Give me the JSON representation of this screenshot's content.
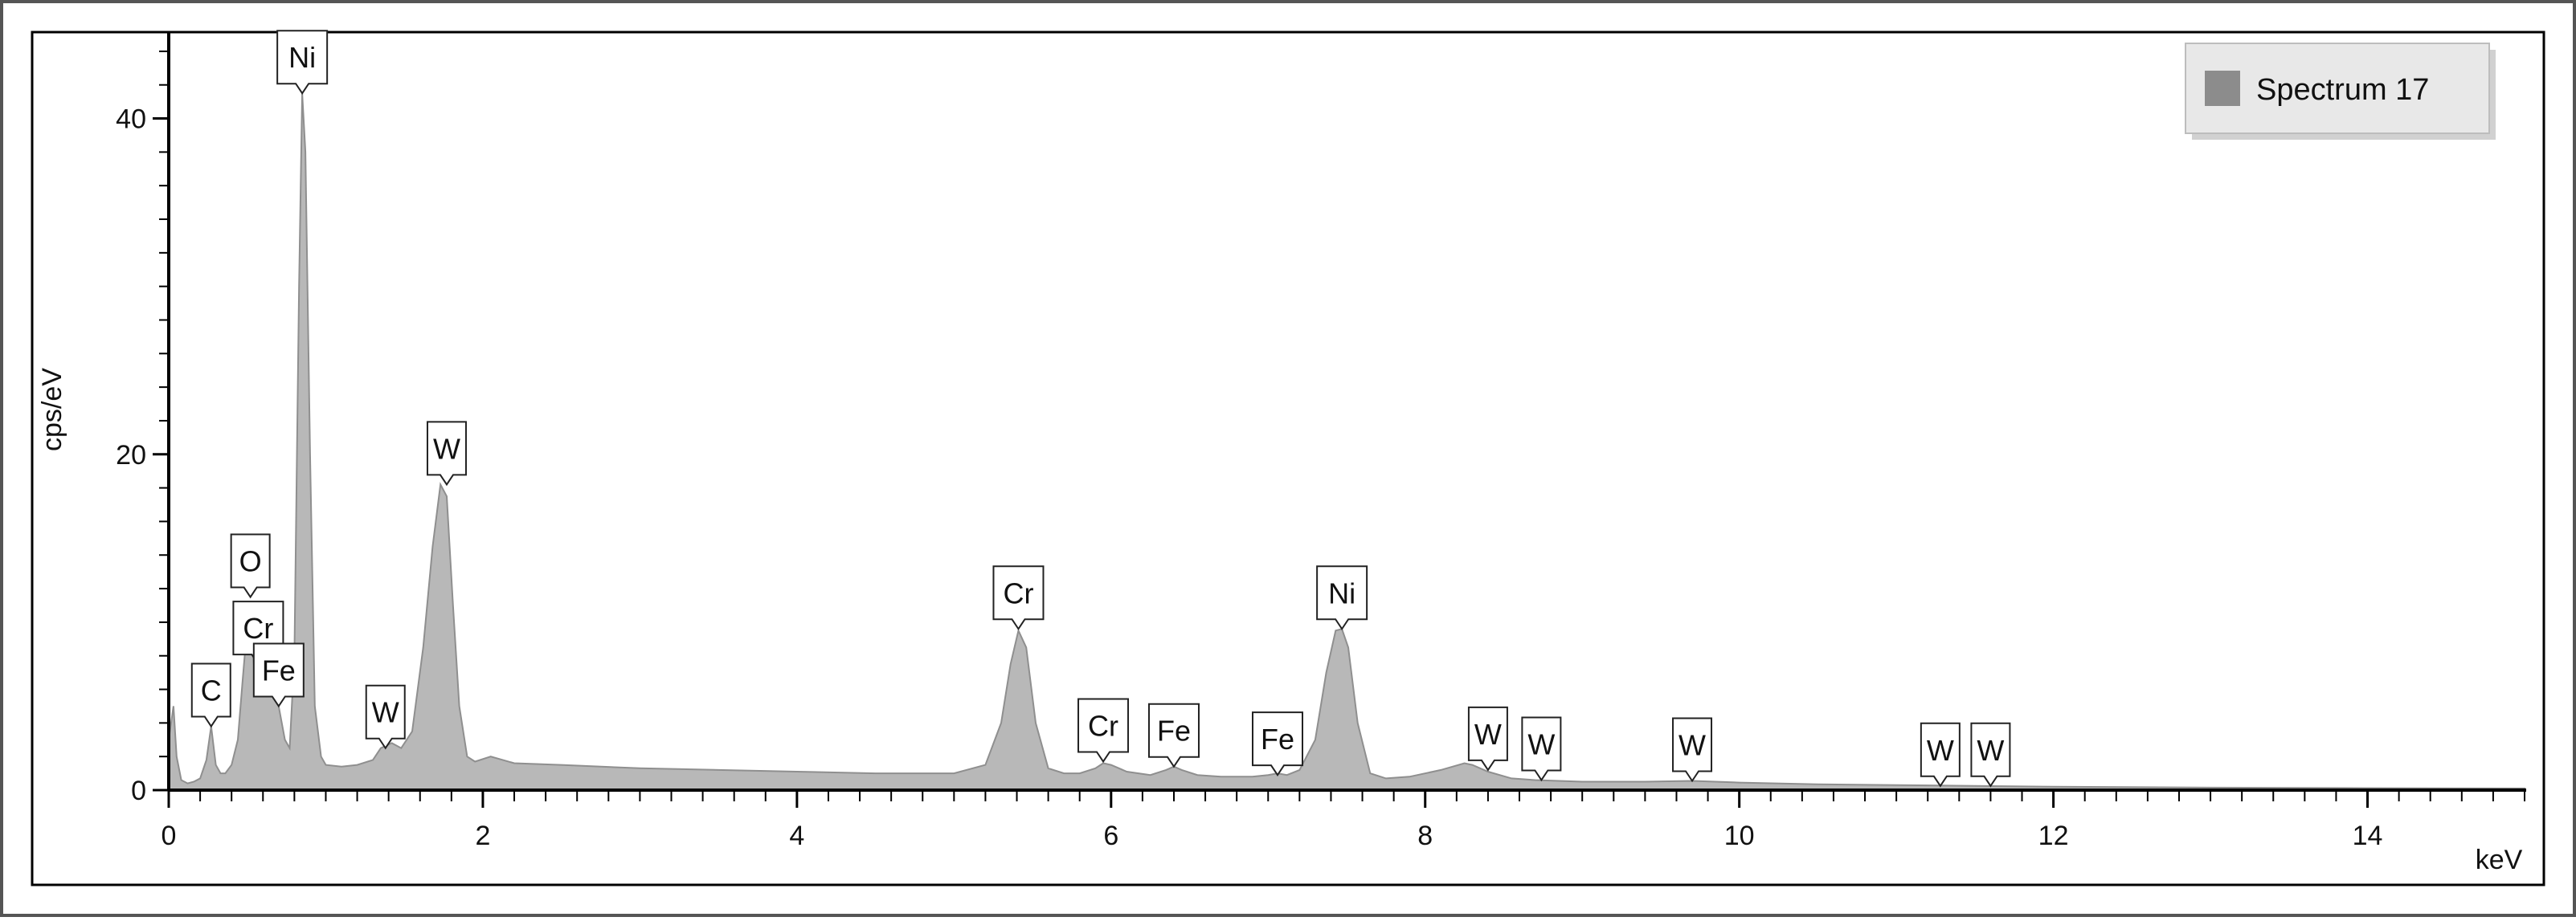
{
  "chart_data": {
    "type": "area",
    "title": "",
    "xlabel": "keV",
    "ylabel": "cps/eV",
    "xlim": [
      0,
      15
    ],
    "ylim": [
      0,
      45
    ],
    "x_ticks": [
      0,
      2,
      4,
      6,
      8,
      10,
      12,
      14
    ],
    "y_ticks": [
      0,
      20,
      40
    ],
    "grid": false,
    "legend": {
      "position": "top-right",
      "entries": [
        "Spectrum 17"
      ]
    },
    "series": [
      {
        "name": "Spectrum 17",
        "color": "#b4b4b4",
        "x": [
          0.0,
          0.03,
          0.05,
          0.08,
          0.12,
          0.16,
          0.2,
          0.24,
          0.27,
          0.3,
          0.33,
          0.36,
          0.4,
          0.44,
          0.47,
          0.5,
          0.53,
          0.55,
          0.58,
          0.61,
          0.64,
          0.67,
          0.7,
          0.74,
          0.77,
          0.8,
          0.83,
          0.85,
          0.87,
          0.9,
          0.93,
          0.97,
          1.0,
          1.1,
          1.2,
          1.3,
          1.35,
          1.42,
          1.48,
          1.55,
          1.62,
          1.68,
          1.73,
          1.77,
          1.81,
          1.85,
          1.9,
          1.95,
          2.05,
          2.2,
          2.5,
          3.0,
          3.5,
          4.0,
          4.5,
          5.0,
          5.2,
          5.3,
          5.36,
          5.41,
          5.46,
          5.52,
          5.6,
          5.7,
          5.8,
          5.9,
          5.95,
          6.0,
          6.1,
          6.25,
          6.35,
          6.4,
          6.45,
          6.55,
          6.7,
          6.9,
          7.0,
          7.06,
          7.12,
          7.2,
          7.3,
          7.37,
          7.43,
          7.47,
          7.51,
          7.57,
          7.65,
          7.75,
          7.9,
          8.1,
          8.25,
          8.3,
          8.4,
          8.55,
          8.7,
          9.0,
          9.4,
          9.7,
          10.0,
          10.5,
          11.0,
          11.5,
          12.0,
          13.0,
          14.0,
          15.0
        ],
        "y": [
          3.0,
          5.0,
          2.0,
          0.6,
          0.4,
          0.5,
          0.7,
          1.8,
          3.8,
          1.5,
          1.0,
          1.0,
          1.5,
          3.0,
          6.5,
          9.8,
          9.0,
          6.5,
          6.0,
          7.0,
          7.0,
          6.0,
          5.0,
          3.0,
          2.5,
          8.0,
          30.0,
          41.5,
          38.0,
          20.0,
          5.0,
          2.0,
          1.5,
          1.4,
          1.5,
          1.8,
          2.5,
          2.8,
          2.5,
          3.5,
          8.5,
          14.5,
          18.2,
          17.5,
          11.0,
          5.0,
          2.0,
          1.7,
          2.0,
          1.6,
          1.5,
          1.3,
          1.2,
          1.1,
          1.0,
          1.0,
          1.5,
          4.0,
          7.5,
          9.5,
          8.5,
          4.0,
          1.3,
          1.0,
          1.0,
          1.3,
          1.6,
          1.5,
          1.1,
          0.9,
          1.2,
          1.4,
          1.2,
          0.9,
          0.8,
          0.8,
          0.9,
          1.0,
          0.9,
          1.2,
          3.0,
          7.0,
          9.5,
          9.6,
          8.5,
          4.0,
          1.0,
          0.7,
          0.8,
          1.2,
          1.6,
          1.5,
          1.1,
          0.7,
          0.6,
          0.5,
          0.5,
          0.55,
          0.45,
          0.35,
          0.3,
          0.25,
          0.2,
          0.15,
          0.12,
          0.1
        ]
      }
    ],
    "annotations": [
      {
        "label": "Ni",
        "x": 0.85,
        "y": 41.5
      },
      {
        "label": "W",
        "x": 1.77,
        "y": 18.2
      },
      {
        "label": "O",
        "x": 0.52,
        "y": 11.5
      },
      {
        "label": "Cr",
        "x": 0.57,
        "y": 7.5
      },
      {
        "label": "C",
        "x": 0.27,
        "y": 3.8
      },
      {
        "label": "Fe",
        "x": 0.7,
        "y": 5.0
      },
      {
        "label": "W",
        "x": 1.38,
        "y": 2.5
      },
      {
        "label": "Cr",
        "x": 5.41,
        "y": 9.6
      },
      {
        "label": "Cr",
        "x": 5.95,
        "y": 1.7
      },
      {
        "label": "Fe",
        "x": 6.4,
        "y": 1.4
      },
      {
        "label": "Fe",
        "x": 7.06,
        "y": 0.9
      },
      {
        "label": "Ni",
        "x": 7.47,
        "y": 9.6
      },
      {
        "label": "W",
        "x": 8.4,
        "y": 1.2
      },
      {
        "label": "W",
        "x": 8.74,
        "y": 0.6
      },
      {
        "label": "W",
        "x": 9.7,
        "y": 0.55
      },
      {
        "label": "W",
        "x": 11.28,
        "y": 0.25
      },
      {
        "label": "W",
        "x": 11.6,
        "y": 0.25
      }
    ]
  }
}
